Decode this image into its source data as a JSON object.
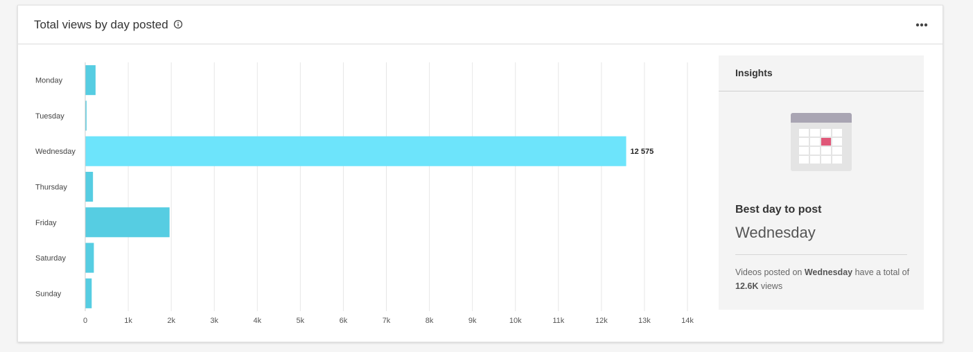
{
  "header": {
    "title": "Total views by day posted",
    "info_icon": "info-icon",
    "more_icon": "more-horizontal-icon"
  },
  "colors": {
    "bar": "#56cde2",
    "bar_highlight": "#6de4fb",
    "grid": "#e6e6e6",
    "calendar_top": "#a9a5b3",
    "calendar_highlight": "#e05778"
  },
  "chart_data": {
    "type": "bar",
    "orientation": "horizontal",
    "categories": [
      "Monday",
      "Tuesday",
      "Wednesday",
      "Thursday",
      "Friday",
      "Saturday",
      "Sunday"
    ],
    "values": [
      240,
      30,
      12575,
      180,
      1960,
      200,
      150
    ],
    "highlight_index": 2,
    "data_labels": [
      {
        "index": 2,
        "text": "12 575"
      }
    ],
    "xlim": [
      0,
      14000
    ],
    "xticks": [
      "0",
      "1k",
      "2k",
      "3k",
      "4k",
      "5k",
      "6k",
      "7k",
      "8k",
      "9k",
      "10k",
      "11k",
      "12k",
      "13k",
      "14k"
    ],
    "grid": true,
    "xlabel": "",
    "ylabel": ""
  },
  "insights": {
    "title": "Insights",
    "icon": "calendar-icon",
    "best_label": "Best day to post",
    "best_value": "Wednesday",
    "desc_prefix": "Videos posted on ",
    "desc_day": "Wednesday",
    "desc_middle": " have a total of ",
    "desc_total": "12.6K",
    "desc_suffix": " views"
  }
}
